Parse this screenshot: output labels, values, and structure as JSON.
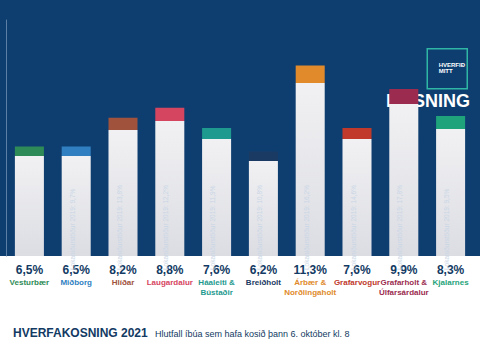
{
  "chart_data": {
    "type": "bar",
    "title": "HVERFAKOSNING 2021",
    "subtitle": "Hlutfall íbúa sem hafa kosið þann 6. október kl. 8",
    "logo": "HVERFIÐ MITT",
    "header": "KOSNING",
    "categories": [
      "Vesturbær",
      "Miðborg",
      "Hlíðar",
      "Laugardalur",
      "Háaleiti & Bústaðir",
      "Breiðholt",
      "Árbær & Norðlingaholt",
      "Grafarvogur",
      "Grafarholt & Úlfarsárdalur",
      "Kjalarnes"
    ],
    "values": [
      6.5,
      6.5,
      8.2,
      8.8,
      7.6,
      6.2,
      11.3,
      7.6,
      9.9,
      8.3
    ],
    "value_labels": [
      "6,5%",
      "6,5%",
      "8,2%",
      "8,8%",
      "7,6%",
      "6,2%",
      "11,3%",
      "7,6%",
      "9,9%",
      "8,3%"
    ],
    "annotations": [
      null,
      "Lokaniðurstöður 2019: 9,7%",
      "Lokaniðurstöður 2019: 13,8%",
      "Lokaniðurstöður 2019: 12,2%",
      "Lokaniðurstöður 2019: 11,9%",
      "Lokaniðurstöður 2019: 10,8%",
      "Lokaniðurstöður 2019: 16,2%",
      "Lokaniðurstöður 2019: 14,6%",
      "Lokaniðurstöður 2019: 17,8%",
      "Lokaniðurstöður 2019: 9,5%"
    ],
    "colors": [
      "#2e8b57",
      "#2f7fc1",
      "#a0523d",
      "#d6455f",
      "#1f9a8f",
      "#1b3a63",
      "#e08a2c",
      "#c0392b",
      "#9b2c4f",
      "#1fa37a"
    ],
    "ylim": [
      0,
      14
    ],
    "yticks": [],
    "tick_labels": false,
    "grid": false,
    "data_labels": true
  }
}
